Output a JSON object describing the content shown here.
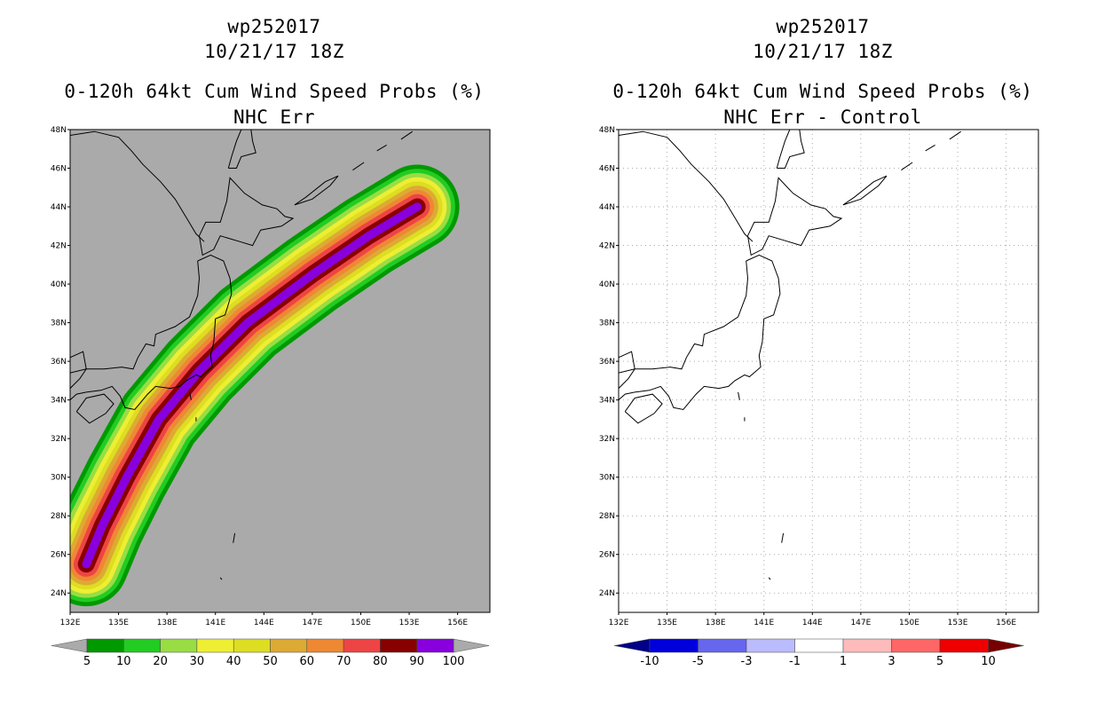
{
  "left_panel": {
    "title_storm": "wp252017",
    "title_time": "10/21/17 18Z",
    "title_product": "0-120h 64kt Cum Wind Speed Probs (%)",
    "title_sub": "NHC Err",
    "map_background": "#aaaaaa",
    "colorbar": {
      "labels": [
        "5",
        "10",
        "20",
        "30",
        "40",
        "50",
        "60",
        "70",
        "80",
        "90",
        "100"
      ],
      "colors": [
        "#009900",
        "#22cc22",
        "#99dd44",
        "#eeee33",
        "#dddd22",
        "#ddaa33",
        "#ee8833",
        "#ee4444",
        "#880000",
        "#8800dd"
      ],
      "under_color": "#aaaaaa",
      "over_color": "#aaaaaa"
    }
  },
  "right_panel": {
    "title_storm": "wp252017",
    "title_time": "10/21/17 18Z",
    "title_product": "0-120h 64kt Cum Wind Speed Probs (%)",
    "title_sub": "NHC Err - Control",
    "map_background": "#ffffff",
    "colorbar": {
      "labels": [
        "-10",
        "-5",
        "-3",
        "-1",
        "1",
        "3",
        "5",
        "10"
      ],
      "colors": [
        "#0000dd",
        "#6666ee",
        "#bbbbff",
        "#ffffff",
        "#ffbbbb",
        "#ff6666",
        "#ee0000"
      ],
      "under_color": "#000088",
      "over_color": "#770000"
    }
  },
  "axes": {
    "lon_labels": [
      "132E",
      "135E",
      "138E",
      "141E",
      "144E",
      "147E",
      "150E",
      "153E",
      "156E"
    ],
    "lat_labels": [
      "24N",
      "26N",
      "28N",
      "30N",
      "32N",
      "34N",
      "36N",
      "38N",
      "40N",
      "42N",
      "44N",
      "46N",
      "48N"
    ],
    "lon_range": [
      132,
      158
    ],
    "lat_range": [
      23,
      48
    ]
  },
  "probability_swath": {
    "track": [
      [
        133.0,
        25.5
      ],
      [
        134.0,
        27.5
      ],
      [
        135.5,
        30.0
      ],
      [
        137.5,
        33.0
      ],
      [
        140.0,
        35.5
      ],
      [
        143.0,
        38.0
      ],
      [
        147.0,
        40.5
      ],
      [
        150.5,
        42.5
      ],
      [
        153.5,
        44.0
      ]
    ],
    "bands": [
      {
        "level": 5,
        "color": "#009900"
      },
      {
        "level": 10,
        "color": "#22cc22"
      },
      {
        "level": 20,
        "color": "#99dd44"
      },
      {
        "level": 30,
        "color": "#eeee33"
      },
      {
        "level": 40,
        "color": "#dddd22"
      },
      {
        "level": 50,
        "color": "#ddaa33"
      },
      {
        "level": 60,
        "color": "#ee8833"
      },
      {
        "level": 70,
        "color": "#ee4444"
      },
      {
        "level": 80,
        "color": "#880000"
      },
      {
        "level": 90,
        "color": "#8800dd"
      }
    ]
  }
}
